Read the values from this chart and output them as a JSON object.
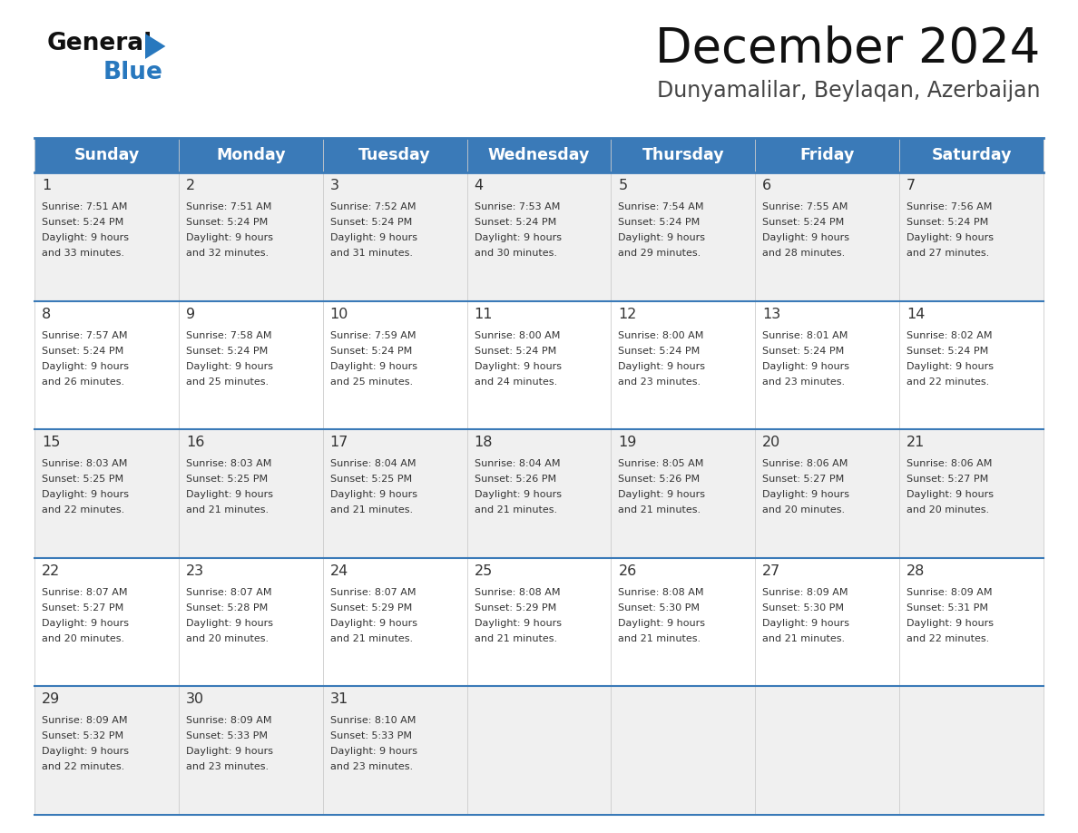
{
  "title": "December 2024",
  "subtitle": "Dunyamalilar, Beylaqan, Azerbaijan",
  "header_bg": "#3a7ab8",
  "header_text_color": "#ffffff",
  "header_days": [
    "Sunday",
    "Monday",
    "Tuesday",
    "Wednesday",
    "Thursday",
    "Friday",
    "Saturday"
  ],
  "row_bg_odd": "#f0f0f0",
  "row_bg_even": "#ffffff",
  "cell_text_color": "#333333",
  "grid_line_color": "#3a7ab8",
  "title_color": "#111111",
  "subtitle_color": "#444444",
  "logo_general_color": "#111111",
  "logo_blue_color": "#2878be",
  "days": [
    {
      "day": 1,
      "col": 0,
      "row": 0,
      "sunrise": "7:51 AM",
      "sunset": "5:24 PM",
      "daylight": "9 hours and 33 minutes."
    },
    {
      "day": 2,
      "col": 1,
      "row": 0,
      "sunrise": "7:51 AM",
      "sunset": "5:24 PM",
      "daylight": "9 hours and 32 minutes."
    },
    {
      "day": 3,
      "col": 2,
      "row": 0,
      "sunrise": "7:52 AM",
      "sunset": "5:24 PM",
      "daylight": "9 hours and 31 minutes."
    },
    {
      "day": 4,
      "col": 3,
      "row": 0,
      "sunrise": "7:53 AM",
      "sunset": "5:24 PM",
      "daylight": "9 hours and 30 minutes."
    },
    {
      "day": 5,
      "col": 4,
      "row": 0,
      "sunrise": "7:54 AM",
      "sunset": "5:24 PM",
      "daylight": "9 hours and 29 minutes."
    },
    {
      "day": 6,
      "col": 5,
      "row": 0,
      "sunrise": "7:55 AM",
      "sunset": "5:24 PM",
      "daylight": "9 hours and 28 minutes."
    },
    {
      "day": 7,
      "col": 6,
      "row": 0,
      "sunrise": "7:56 AM",
      "sunset": "5:24 PM",
      "daylight": "9 hours and 27 minutes."
    },
    {
      "day": 8,
      "col": 0,
      "row": 1,
      "sunrise": "7:57 AM",
      "sunset": "5:24 PM",
      "daylight": "9 hours and 26 minutes."
    },
    {
      "day": 9,
      "col": 1,
      "row": 1,
      "sunrise": "7:58 AM",
      "sunset": "5:24 PM",
      "daylight": "9 hours and 25 minutes."
    },
    {
      "day": 10,
      "col": 2,
      "row": 1,
      "sunrise": "7:59 AM",
      "sunset": "5:24 PM",
      "daylight": "9 hours and 25 minutes."
    },
    {
      "day": 11,
      "col": 3,
      "row": 1,
      "sunrise": "8:00 AM",
      "sunset": "5:24 PM",
      "daylight": "9 hours and 24 minutes."
    },
    {
      "day": 12,
      "col": 4,
      "row": 1,
      "sunrise": "8:00 AM",
      "sunset": "5:24 PM",
      "daylight": "9 hours and 23 minutes."
    },
    {
      "day": 13,
      "col": 5,
      "row": 1,
      "sunrise": "8:01 AM",
      "sunset": "5:24 PM",
      "daylight": "9 hours and 23 minutes."
    },
    {
      "day": 14,
      "col": 6,
      "row": 1,
      "sunrise": "8:02 AM",
      "sunset": "5:24 PM",
      "daylight": "9 hours and 22 minutes."
    },
    {
      "day": 15,
      "col": 0,
      "row": 2,
      "sunrise": "8:03 AM",
      "sunset": "5:25 PM",
      "daylight": "9 hours and 22 minutes."
    },
    {
      "day": 16,
      "col": 1,
      "row": 2,
      "sunrise": "8:03 AM",
      "sunset": "5:25 PM",
      "daylight": "9 hours and 21 minutes."
    },
    {
      "day": 17,
      "col": 2,
      "row": 2,
      "sunrise": "8:04 AM",
      "sunset": "5:25 PM",
      "daylight": "9 hours and 21 minutes."
    },
    {
      "day": 18,
      "col": 3,
      "row": 2,
      "sunrise": "8:04 AM",
      "sunset": "5:26 PM",
      "daylight": "9 hours and 21 minutes."
    },
    {
      "day": 19,
      "col": 4,
      "row": 2,
      "sunrise": "8:05 AM",
      "sunset": "5:26 PM",
      "daylight": "9 hours and 21 minutes."
    },
    {
      "day": 20,
      "col": 5,
      "row": 2,
      "sunrise": "8:06 AM",
      "sunset": "5:27 PM",
      "daylight": "9 hours and 20 minutes."
    },
    {
      "day": 21,
      "col": 6,
      "row": 2,
      "sunrise": "8:06 AM",
      "sunset": "5:27 PM",
      "daylight": "9 hours and 20 minutes."
    },
    {
      "day": 22,
      "col": 0,
      "row": 3,
      "sunrise": "8:07 AM",
      "sunset": "5:27 PM",
      "daylight": "9 hours and 20 minutes."
    },
    {
      "day": 23,
      "col": 1,
      "row": 3,
      "sunrise": "8:07 AM",
      "sunset": "5:28 PM",
      "daylight": "9 hours and 20 minutes."
    },
    {
      "day": 24,
      "col": 2,
      "row": 3,
      "sunrise": "8:07 AM",
      "sunset": "5:29 PM",
      "daylight": "9 hours and 21 minutes."
    },
    {
      "day": 25,
      "col": 3,
      "row": 3,
      "sunrise": "8:08 AM",
      "sunset": "5:29 PM",
      "daylight": "9 hours and 21 minutes."
    },
    {
      "day": 26,
      "col": 4,
      "row": 3,
      "sunrise": "8:08 AM",
      "sunset": "5:30 PM",
      "daylight": "9 hours and 21 minutes."
    },
    {
      "day": 27,
      "col": 5,
      "row": 3,
      "sunrise": "8:09 AM",
      "sunset": "5:30 PM",
      "daylight": "9 hours and 21 minutes."
    },
    {
      "day": 28,
      "col": 6,
      "row": 3,
      "sunrise": "8:09 AM",
      "sunset": "5:31 PM",
      "daylight": "9 hours and 22 minutes."
    },
    {
      "day": 29,
      "col": 0,
      "row": 4,
      "sunrise": "8:09 AM",
      "sunset": "5:32 PM",
      "daylight": "9 hours and 22 minutes."
    },
    {
      "day": 30,
      "col": 1,
      "row": 4,
      "sunrise": "8:09 AM",
      "sunset": "5:33 PM",
      "daylight": "9 hours and 23 minutes."
    },
    {
      "day": 31,
      "col": 2,
      "row": 4,
      "sunrise": "8:10 AM",
      "sunset": "5:33 PM",
      "daylight": "9 hours and 23 minutes."
    }
  ]
}
